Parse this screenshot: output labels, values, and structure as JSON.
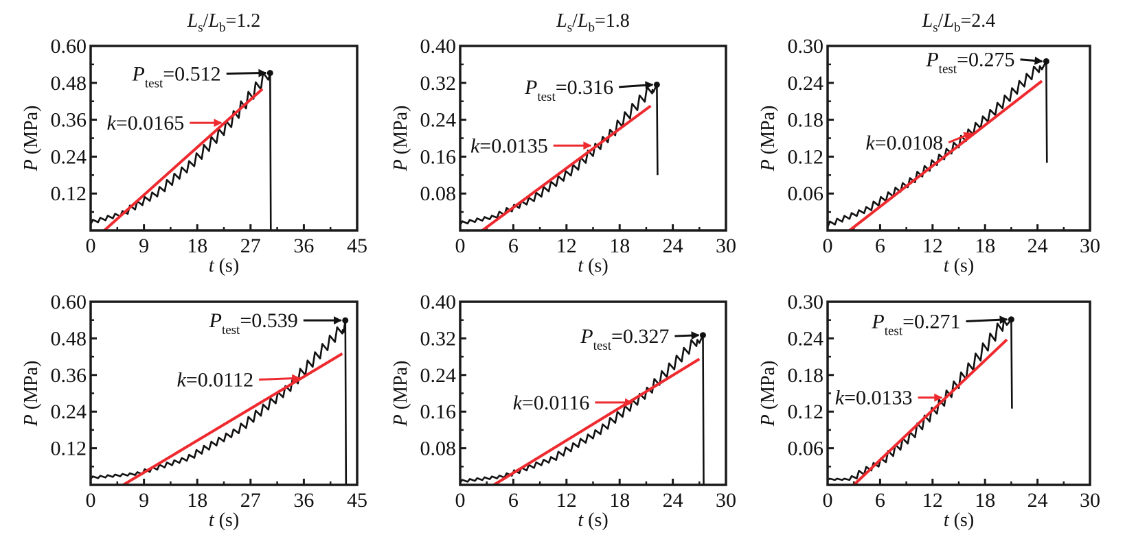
{
  "chart_data": [
    {
      "type": "line",
      "row": 1,
      "column": 1,
      "title": {
        "var_num": "L",
        "sub_num": "s",
        "slash": "/",
        "var_den": "L",
        "sub_den": "b",
        "value": "=1.2"
      },
      "xlabel": {
        "symbol": "t",
        "unit": " (s)"
      },
      "ylabel": {
        "symbol": "P",
        "unit": " (MPa)"
      },
      "xlim": [
        0,
        45
      ],
      "ylim": [
        0,
        0.6
      ],
      "xticks": [
        "0",
        "9",
        "18",
        "27",
        "36",
        "45"
      ],
      "yticks": [
        "0.12",
        "0.24",
        "0.36",
        "0.48",
        "0.60"
      ],
      "curve": {
        "t": [
          0,
          6,
          12,
          18,
          24,
          30
        ],
        "P": [
          0.02,
          0.051,
          0.119,
          0.217,
          0.341,
          0.49
        ]
      },
      "peak": {
        "t": 30.3,
        "P": 0.512
      },
      "drop_to": 0,
      "fit_line": {
        "t": [
          2.3,
          29
        ],
        "P": [
          0,
          0.46
        ]
      },
      "ptest_label": {
        "symbol": "P",
        "sub": "test",
        "value": "=0.512"
      },
      "k_label": {
        "symbol": "k",
        "value": "=0.0165"
      }
    },
    {
      "type": "line",
      "row": 1,
      "column": 2,
      "title": {
        "var_num": "L",
        "sub_num": "s",
        "slash": "/",
        "var_den": "L",
        "sub_den": "b",
        "value": "=1.8"
      },
      "xlabel": {
        "symbol": "t",
        "unit": " (s)"
      },
      "ylabel": {
        "symbol": "P",
        "unit": " (MPa)"
      },
      "xlim": [
        0,
        30
      ],
      "ylim": [
        0,
        0.4
      ],
      "xticks": [
        "0",
        "6",
        "12",
        "18",
        "24",
        "30"
      ],
      "yticks": [
        "0.08",
        "0.16",
        "0.24",
        "0.32",
        "0.40"
      ],
      "curve": {
        "t": [
          0,
          4.36,
          8.72,
          13.08,
          17.44,
          21.8
        ],
        "P": [
          0.012,
          0.028,
          0.067,
          0.127,
          0.205,
          0.3
        ]
      },
      "peak": {
        "t": 22.2,
        "P": 0.316
      },
      "drop_to": 0.12,
      "fit_line": {
        "t": [
          2.5,
          21.5
        ],
        "P": [
          0,
          0.27
        ]
      },
      "ptest_label": {
        "symbol": "P",
        "sub": "test",
        "value": "=0.316"
      },
      "k_label": {
        "symbol": "k",
        "value": "=0.0135"
      }
    },
    {
      "type": "line",
      "row": 1,
      "column": 3,
      "title": {
        "var_num": "L",
        "sub_num": "s",
        "slash": "/",
        "var_den": "L",
        "sub_den": "b",
        "value": "=2.4"
      },
      "xlabel": {
        "symbol": "t",
        "unit": " (s)"
      },
      "ylabel": {
        "symbol": "P",
        "unit": " (MPa)"
      },
      "xlim": [
        0,
        30
      ],
      "ylim": [
        0,
        0.3
      ],
      "xticks": [
        "0",
        "6",
        "12",
        "18",
        "24",
        "30"
      ],
      "yticks": [
        "0.06",
        "0.12",
        "0.18",
        "0.24",
        "0.30"
      ],
      "curve": {
        "t": [
          0,
          4.9,
          9.8,
          14.7,
          19.6,
          24.5
        ],
        "P": [
          0.005,
          0.032,
          0.076,
          0.131,
          0.193,
          0.262
        ]
      },
      "peak": {
        "t": 25.0,
        "P": 0.275
      },
      "drop_to": 0.11,
      "fit_line": {
        "t": [
          2.5,
          24.5
        ],
        "P": [
          0,
          0.243
        ]
      },
      "ptest_label": {
        "symbol": "P",
        "sub": "test",
        "value": "=0.275"
      },
      "k_label": {
        "symbol": "k",
        "value": "=0.0108"
      }
    },
    {
      "type": "line",
      "row": 2,
      "column": 1,
      "xlabel": {
        "symbol": "t",
        "unit": " (s)"
      },
      "ylabel": {
        "symbol": "P",
        "unit": " (MPa)"
      },
      "xlim": [
        0,
        45
      ],
      "ylim": [
        0,
        0.6
      ],
      "xticks": [
        "0",
        "9",
        "18",
        "27",
        "36",
        "45"
      ],
      "yticks": [
        "0.12",
        "0.24",
        "0.36",
        "0.48",
        "0.60"
      ],
      "curve": {
        "t": [
          0,
          8.54,
          17.08,
          25.62,
          34.16,
          42.7
        ],
        "P": [
          0.02,
          0.034,
          0.084,
          0.176,
          0.314,
          0.5
        ]
      },
      "peak": {
        "t": 43.0,
        "P": 0.539
      },
      "drop_to": 0,
      "fit_line": {
        "t": [
          5.5,
          42.5
        ],
        "P": [
          0,
          0.43
        ]
      },
      "ptest_label": {
        "symbol": "P",
        "sub": "test",
        "value": "=0.539"
      },
      "k_label": {
        "symbol": "k",
        "value": "=0.0112"
      }
    },
    {
      "type": "line",
      "row": 2,
      "column": 2,
      "xlabel": {
        "symbol": "t",
        "unit": " (s)"
      },
      "ylabel": {
        "symbol": "P",
        "unit": " (MPa)"
      },
      "xlim": [
        0,
        30
      ],
      "ylim": [
        0,
        0.4
      ],
      "xticks": [
        "0",
        "6",
        "12",
        "18",
        "24",
        "30"
      ],
      "yticks": [
        "0.08",
        "0.16",
        "0.24",
        "0.32",
        "0.40"
      ],
      "curve": {
        "t": [
          0,
          5.4,
          10.8,
          16.2,
          21.6,
          27
        ],
        "P": [
          0.005,
          0.017,
          0.054,
          0.115,
          0.2,
          0.31
        ]
      },
      "peak": {
        "t": 27.4,
        "P": 0.327
      },
      "drop_to": 0,
      "fit_line": {
        "t": [
          3.8,
          27
        ],
        "P": [
          0,
          0.275
        ]
      },
      "ptest_label": {
        "symbol": "P",
        "sub": "test",
        "value": "=0.327"
      },
      "k_label": {
        "symbol": "k",
        "value": "=0.0116"
      }
    },
    {
      "type": "line",
      "row": 2,
      "column": 3,
      "xlabel": {
        "symbol": "t",
        "unit": " (s)"
      },
      "ylabel": {
        "symbol": "P",
        "unit": " (MPa)"
      },
      "xlim": [
        0,
        30
      ],
      "ylim": [
        0,
        0.3
      ],
      "xticks": [
        "0",
        "6",
        "12",
        "18",
        "24",
        "30"
      ],
      "yticks": [
        "0.06",
        "0.12",
        "0.18",
        "0.24",
        "0.30"
      ],
      "curve": {
        "t": [
          0,
          3,
          6.5,
          10,
          13.5,
          17,
          20.5
        ],
        "P": [
          0.008,
          0.008,
          0.035,
          0.078,
          0.132,
          0.194,
          0.262
        ]
      },
      "peak": {
        "t": 21.0,
        "P": 0.271
      },
      "drop_to": 0.125,
      "fit_line": {
        "t": [
          3,
          20.5
        ],
        "P": [
          0,
          0.238
        ]
      },
      "ptest_label": {
        "symbol": "P",
        "sub": "test",
        "value": "=0.271"
      },
      "k_label": {
        "symbol": "k",
        "value": "=0.0133"
      }
    }
  ],
  "colors": {
    "curve": "#111111",
    "fit": "#ee2a2f",
    "frame": "#1a1a1a"
  }
}
